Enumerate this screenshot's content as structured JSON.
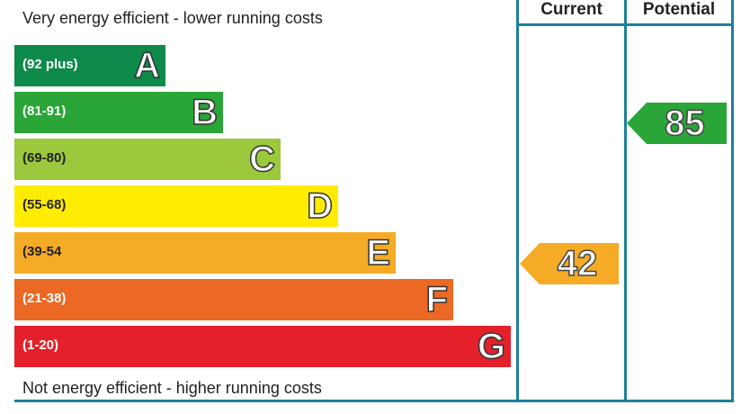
{
  "chart_data": {
    "type": "bar",
    "top_caption": "Very energy efficient - lower running costs",
    "bottom_caption": "Not energy efficient - higher running costs",
    "bands": [
      {
        "letter": "A",
        "range": "(92 plus)",
        "color": "#0e8a4a",
        "min": 92,
        "max": 100
      },
      {
        "letter": "B",
        "range": "(81-91)",
        "color": "#2aa537",
        "min": 81,
        "max": 91
      },
      {
        "letter": "C",
        "range": "(69-80)",
        "color": "#9bc83c",
        "min": 69,
        "max": 80
      },
      {
        "letter": "D",
        "range": "(55-68)",
        "color": "#ffec00",
        "min": 55,
        "max": 68
      },
      {
        "letter": "E",
        "range": "(39-54",
        "color": "#f5ab26",
        "min": 39,
        "max": 54
      },
      {
        "letter": "F",
        "range": "(21-38)",
        "color": "#eb6825",
        "min": 21,
        "max": 38
      },
      {
        "letter": "G",
        "range": "(1-20)",
        "color": "#e4202a",
        "min": 1,
        "max": 20
      }
    ],
    "columns": [
      "Current",
      "Potential"
    ],
    "current": {
      "value": 42,
      "band": "E",
      "color": "#f5ab26"
    },
    "potential": {
      "value": 85,
      "band": "B",
      "color": "#2aa537"
    }
  }
}
